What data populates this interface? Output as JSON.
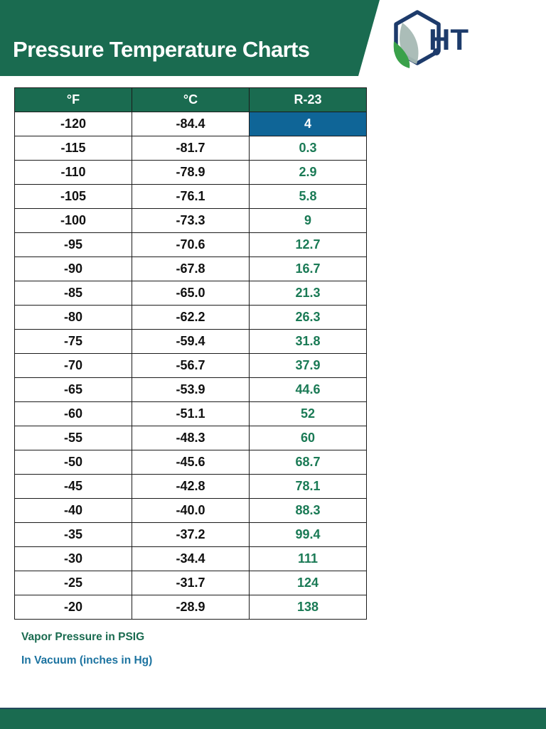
{
  "header": {
    "title": "Pressure Temperature Charts",
    "logo_text": "HT",
    "colors": {
      "banner": "#1a6b50",
      "logo_navy": "#1d3b6b",
      "leaf_green": "#3aa14a"
    }
  },
  "table": {
    "columns": [
      "°F",
      "°C",
      "R-23"
    ],
    "rows": [
      {
        "f": "-120",
        "c": "-84.4",
        "p": "4",
        "vacuum": true
      },
      {
        "f": "-115",
        "c": "-81.7",
        "p": "0.3",
        "vacuum": false
      },
      {
        "f": "-110",
        "c": "-78.9",
        "p": "2.9",
        "vacuum": false
      },
      {
        "f": "-105",
        "c": "-76.1",
        "p": "5.8",
        "vacuum": false
      },
      {
        "f": "-100",
        "c": "-73.3",
        "p": "9",
        "vacuum": false
      },
      {
        "f": "-95",
        "c": "-70.6",
        "p": "12.7",
        "vacuum": false
      },
      {
        "f": "-90",
        "c": "-67.8",
        "p": "16.7",
        "vacuum": false
      },
      {
        "f": "-85",
        "c": "-65.0",
        "p": "21.3",
        "vacuum": false
      },
      {
        "f": "-80",
        "c": "-62.2",
        "p": "26.3",
        "vacuum": false
      },
      {
        "f": "-75",
        "c": "-59.4",
        "p": "31.8",
        "vacuum": false
      },
      {
        "f": "-70",
        "c": "-56.7",
        "p": "37.9",
        "vacuum": false
      },
      {
        "f": "-65",
        "c": "-53.9",
        "p": "44.6",
        "vacuum": false
      },
      {
        "f": "-60",
        "c": "-51.1",
        "p": "52",
        "vacuum": false
      },
      {
        "f": "-55",
        "c": "-48.3",
        "p": "60",
        "vacuum": false
      },
      {
        "f": "-50",
        "c": "-45.6",
        "p": "68.7",
        "vacuum": false
      },
      {
        "f": "-45",
        "c": "-42.8",
        "p": "78.1",
        "vacuum": false
      },
      {
        "f": "-40",
        "c": "-40.0",
        "p": "88.3",
        "vacuum": false
      },
      {
        "f": "-35",
        "c": "-37.2",
        "p": "99.4",
        "vacuum": false
      },
      {
        "f": "-30",
        "c": "-34.4",
        "p": "111",
        "vacuum": false
      },
      {
        "f": "-25",
        "c": "-31.7",
        "p": "124",
        "vacuum": false
      },
      {
        "f": "-20",
        "c": "-28.9",
        "p": "138",
        "vacuum": false
      }
    ],
    "colors": {
      "header_bg": "#1a6b50",
      "pressure_text": "#1a7a55",
      "vacuum_bg": "#0f6597"
    }
  },
  "notes": {
    "pressure": "Vapor Pressure in PSIG",
    "vacuum": "In Vacuum (inches in Hg)"
  }
}
